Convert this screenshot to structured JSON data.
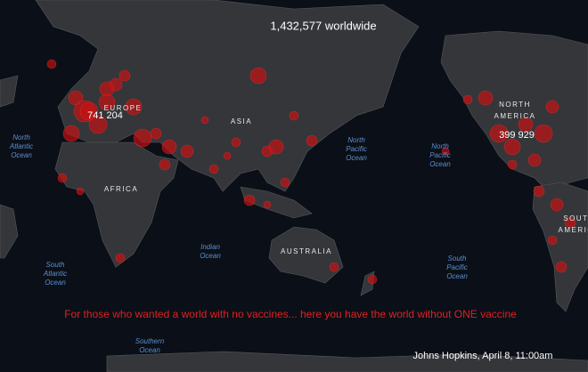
{
  "header": {
    "title": "1,432,577 worldwide"
  },
  "callouts": [
    "741 204",
    "399 929"
  ],
  "continents": [
    {
      "lines": [
        "EUROPE"
      ]
    },
    {
      "lines": [
        "ASIA"
      ]
    },
    {
      "lines": [
        "AFRICA"
      ]
    },
    {
      "lines": [
        "AUSTRALIA"
      ]
    },
    {
      "lines": [
        "NORTH",
        "AMERICA"
      ]
    },
    {
      "lines": [
        "SOUTH",
        "AMERICA"
      ]
    }
  ],
  "oceans": [
    {
      "lines": [
        "North",
        "Atlantic",
        "Ocean"
      ]
    },
    {
      "lines": [
        "North",
        "Pacific",
        "Ocean"
      ]
    },
    {
      "lines": [
        "North",
        "Pacific",
        "Ocean"
      ]
    },
    {
      "lines": [
        "Indian",
        "Ocean"
      ]
    },
    {
      "lines": [
        "South",
        "Atlantic",
        "Ocean"
      ]
    },
    {
      "lines": [
        "South",
        "Pacific",
        "Ocean"
      ]
    },
    {
      "lines": [
        "Southern",
        "Ocean"
      ]
    }
  ],
  "caption": "For those who wanted a world with no vaccines... here you have the world without ONE vaccine",
  "credit": "Johns Hopkins, April 8, 11:00am"
}
